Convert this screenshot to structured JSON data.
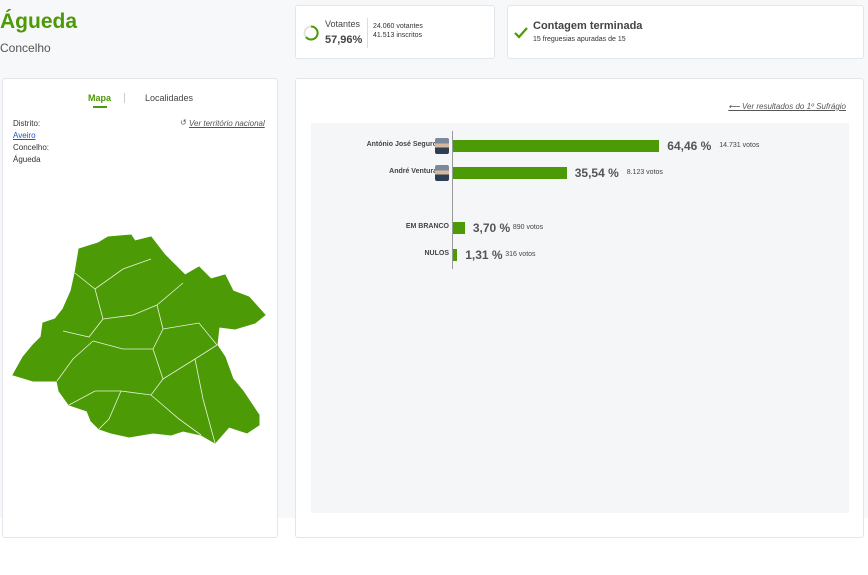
{
  "header": {
    "title": "Águeda",
    "subtitle": "Concelho"
  },
  "turnout": {
    "label": "Votantes",
    "percent": "57,96%",
    "voters": "24.060 votantes",
    "registered": "41.513 inscritos"
  },
  "status": {
    "title": "Contagem terminada",
    "detail": "15 freguesias apuradas de 15"
  },
  "left_panel": {
    "tabs": [
      "Mapa",
      "Localidades"
    ],
    "link": "Ver território nacional",
    "fields": [
      {
        "label": "Distrito:",
        "value": "Aveiro"
      },
      {
        "label": "Concelho:",
        "value": "Águeda"
      }
    ]
  },
  "right_panel": {
    "link": "Ver resultados do 1º Sufrágio"
  },
  "results": {
    "categories": [
      "António José Seguro",
      "André Ventura",
      "EM BRANCO",
      "NULOS"
    ],
    "values": [
      64.46,
      35.54,
      3.7,
      1.31
    ],
    "value_labels": [
      "64,46 %",
      "35,54 %",
      "3,70 %",
      "1,31 %"
    ],
    "votes": [
      "14.731 votos",
      "8.123 votos",
      "890 votos",
      "316 votos"
    ],
    "color": "#4c9a06"
  }
}
